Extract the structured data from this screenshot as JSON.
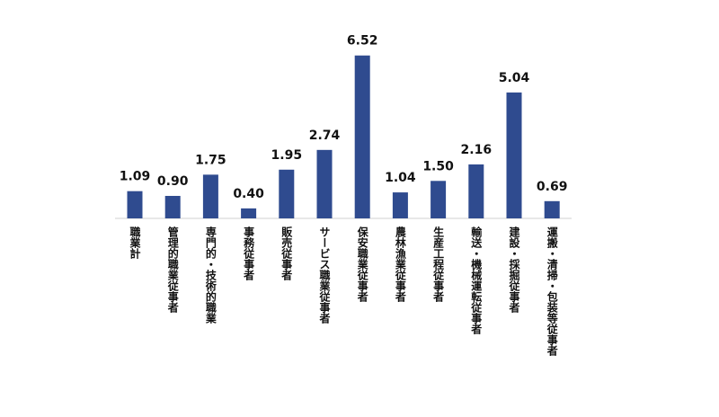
{
  "chart_data": {
    "type": "bar",
    "categories": [
      "職業計",
      "管理的職業従事者",
      "専門的・技術的職業",
      "事務従事者",
      "販売従事者",
      "サービス職業従事者",
      "保安職業従事者",
      "農林漁業従事者",
      "生産工程従事者",
      "輸送・機械運転従事者",
      "建設・採掘従事者",
      "運搬・清掃・包装等従事者"
    ],
    "values": [
      1.09,
      0.9,
      1.75,
      0.4,
      1.95,
      2.74,
      6.52,
      1.04,
      1.5,
      2.16,
      5.04,
      0.69
    ],
    "value_labels": [
      "1.09",
      "0.90",
      "1.75",
      "0.40",
      "1.95",
      "2.74",
      "6.52",
      "1.04",
      "1.50",
      "2.16",
      "5.04",
      "0.69"
    ],
    "color": "#2f4b8f"
  }
}
